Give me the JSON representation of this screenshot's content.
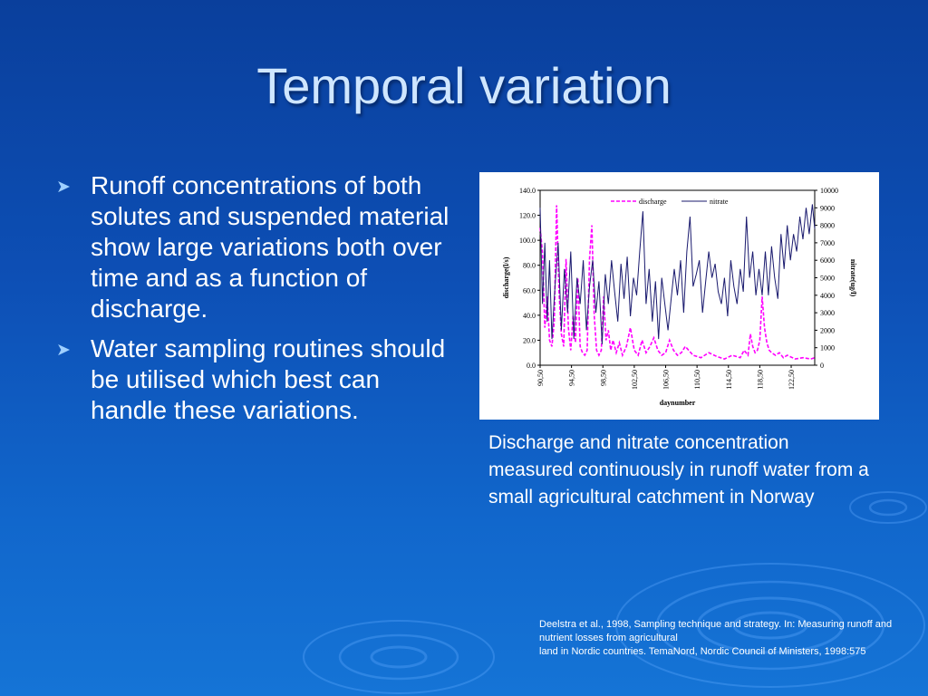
{
  "slide": {
    "title": "Temporal variation",
    "bullets": [
      "Runoff concentrations of both solutes and suspended material show large variations both over time and as a function of discharge.",
      "Water sampling routines should be utilised which best can handle these variations."
    ],
    "bullet_icon": "arrow-bullet-icon",
    "caption": "Discharge and nitrate concentration measured continuously in runoff water from a small agricultural catchment in Norway",
    "reference": [
      "Deelstra et al., 1998, Sampling technique and strategy. In: Measuring runoff and nutrient losses from agricultural",
      "land in Nordic countries. TemaNord, Nordic Council of Ministers, 1998:575"
    ],
    "colors": {
      "title": "#cfe6ff",
      "background": "#0d4fb5",
      "bullet_icon": "#9fd0ff"
    }
  },
  "chart_data": {
    "type": "line",
    "xlabel": "daynumber",
    "ylabel_left": "discharge(l/s)",
    "ylabel_right": "nitrate(ug/l)",
    "xlim": [
      90.5,
      125.5
    ],
    "ylim_left": [
      0,
      140
    ],
    "ylim_right": [
      0,
      10000
    ],
    "x_ticks": [
      "90,50",
      "94,50",
      "98,50",
      "102,50",
      "106,50",
      "110,50",
      "114,50",
      "118,50",
      "122,50"
    ],
    "y_ticks_left": [
      "140.0",
      "120.0",
      "100.0",
      "80.0",
      "60.0",
      "40.0",
      "20.0",
      "0.0"
    ],
    "y_ticks_right": [
      "10000",
      "9000",
      "8000",
      "7000",
      "6000",
      "5000",
      "4000",
      "3000",
      "2000",
      "1000",
      "0"
    ],
    "legend": "top",
    "grid": false,
    "series": [
      {
        "name": "discharge",
        "axis": "left",
        "color": "#ff00ff",
        "style": "dashed",
        "x": [
          90.5,
          90.8,
          91.1,
          91.4,
          91.7,
          92.0,
          92.3,
          92.6,
          92.9,
          93.2,
          93.5,
          93.8,
          94.1,
          94.4,
          94.7,
          95.0,
          95.3,
          95.6,
          95.9,
          96.2,
          96.5,
          96.8,
          97.1,
          97.4,
          97.7,
          98.0,
          98.3,
          98.6,
          98.9,
          99.2,
          99.5,
          99.8,
          100.2,
          100.6,
          101.0,
          101.5,
          102.0,
          102.5,
          103.0,
          103.5,
          104.0,
          104.5,
          105.0,
          105.5,
          106.0,
          106.5,
          107.0,
          107.5,
          108.0,
          108.5,
          109.0,
          110.0,
          111.0,
          112.0,
          113.0,
          114.0,
          115.0,
          116.0,
          116.5,
          117.0,
          117.3,
          117.6,
          117.9,
          118.2,
          118.5,
          118.8,
          119.1,
          119.4,
          119.7,
          120.0,
          120.5,
          121.0,
          121.5,
          122.0,
          123.0,
          124.0,
          125.0,
          125.5
        ],
        "y": [
          110,
          90,
          30,
          55,
          20,
          15,
          35,
          128,
          60,
          25,
          15,
          85,
          30,
          12,
          40,
          18,
          70,
          15,
          10,
          8,
          12,
          85,
          112,
          40,
          12,
          8,
          12,
          55,
          20,
          28,
          12,
          20,
          10,
          18,
          8,
          15,
          30,
          12,
          8,
          20,
          10,
          15,
          22,
          12,
          8,
          10,
          20,
          12,
          8,
          10,
          15,
          8,
          6,
          10,
          7,
          5,
          8,
          6,
          12,
          8,
          25,
          15,
          10,
          12,
          20,
          55,
          30,
          18,
          12,
          10,
          8,
          10,
          6,
          8,
          5,
          6,
          5,
          6
        ]
      },
      {
        "name": "nitrate",
        "axis": "right",
        "color": "#1a1a6e",
        "style": "solid",
        "x": [
          90.5,
          90.8,
          91.1,
          91.4,
          91.7,
          92.0,
          92.4,
          92.8,
          93.2,
          93.6,
          94.0,
          94.4,
          94.8,
          95.2,
          95.6,
          96.0,
          96.4,
          96.8,
          97.2,
          97.6,
          98.0,
          98.4,
          98.8,
          99.2,
          99.6,
          100.0,
          100.4,
          100.8,
          101.2,
          101.6,
          102.0,
          102.4,
          102.8,
          103.2,
          103.6,
          104.0,
          104.4,
          104.8,
          105.2,
          105.6,
          106.0,
          106.4,
          106.8,
          107.2,
          107.6,
          108.0,
          108.4,
          108.8,
          109.2,
          109.6,
          110.0,
          110.4,
          110.8,
          111.2,
          111.6,
          112.0,
          112.4,
          112.8,
          113.2,
          113.6,
          114.0,
          114.4,
          114.8,
          115.2,
          115.6,
          116.0,
          116.4,
          116.8,
          117.2,
          117.6,
          118.0,
          118.4,
          118.8,
          119.2,
          119.6,
          120.0,
          120.4,
          120.8,
          121.2,
          121.6,
          122.0,
          122.4,
          122.8,
          123.2,
          123.6,
          124.0,
          124.4,
          124.8,
          125.2,
          125.5
        ],
        "y": [
          9000,
          3500,
          7000,
          2500,
          6000,
          1500,
          4500,
          7000,
          2000,
          5500,
          3000,
          6500,
          1500,
          5000,
          3500,
          6000,
          2000,
          4500,
          6000,
          3000,
          4800,
          1200,
          5200,
          3500,
          6000,
          4200,
          2500,
          5800,
          3800,
          6200,
          2800,
          5000,
          4000,
          6500,
          8800,
          3500,
          5500,
          2500,
          4800,
          1500,
          5000,
          3500,
          2000,
          3800,
          5500,
          4000,
          6000,
          3000,
          6500,
          8500,
          4500,
          5200,
          6000,
          3000,
          4800,
          6500,
          5000,
          5800,
          4200,
          3500,
          5000,
          2800,
          6000,
          4500,
          3500,
          5500,
          4200,
          8500,
          5000,
          6500,
          4000,
          5500,
          4000,
          6500,
          4000,
          6800,
          5000,
          3800,
          7500,
          5500,
          8000,
          6000,
          7500,
          6500,
          8500,
          7200,
          9000,
          7500,
          9200,
          7800
        ]
      }
    ]
  }
}
